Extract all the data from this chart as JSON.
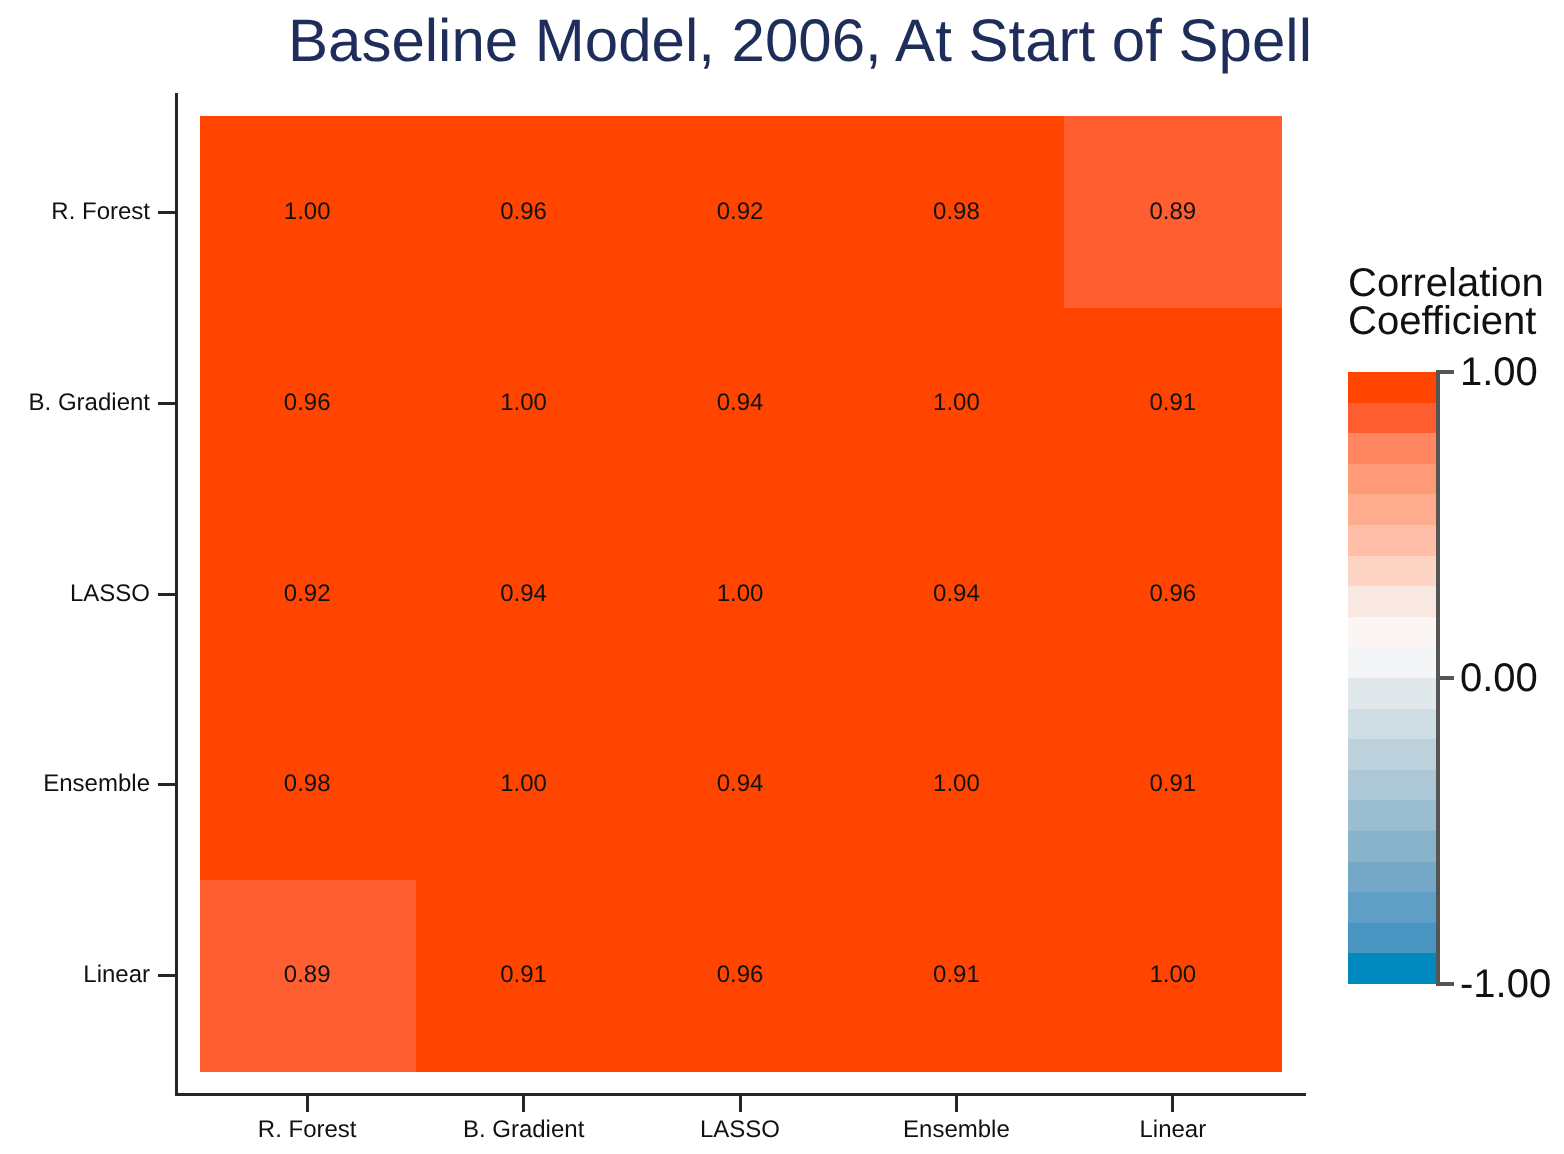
{
  "chart_data": {
    "type": "heatmap",
    "title": "Baseline Model, 2006, At Start of Spell",
    "categories": [
      "R. Forest",
      "B. Gradient",
      "LASSO",
      "Ensemble",
      "Linear"
    ],
    "y_categories": [
      "R. Forest",
      "B. Gradient",
      "LASSO",
      "Ensemble",
      "Linear"
    ],
    "cells": [
      [
        1.0,
        0.96,
        0.92,
        0.98,
        0.89
      ],
      [
        0.96,
        1.0,
        0.94,
        1.0,
        0.91
      ],
      [
        0.92,
        0.94,
        1.0,
        0.94,
        0.96
      ],
      [
        0.98,
        1.0,
        0.94,
        1.0,
        0.91
      ],
      [
        0.89,
        0.91,
        0.96,
        0.91,
        1.0
      ]
    ],
    "cell_labels": [
      [
        "1.00",
        "0.96",
        "0.92",
        "0.98",
        "0.89"
      ],
      [
        "0.96",
        "1.00",
        "0.94",
        "1.00",
        "0.91"
      ],
      [
        "0.92",
        "0.94",
        "1.00",
        "0.94",
        "0.96"
      ],
      [
        "0.98",
        "1.00",
        "0.94",
        "1.00",
        "0.91"
      ],
      [
        "0.89",
        "0.91",
        "0.96",
        "0.91",
        "1.00"
      ]
    ],
    "clabel": "Correlation Coefficient",
    "clim": [
      -1,
      1
    ],
    "cticks": [
      {
        "value": -1,
        "label": "-1.00"
      },
      {
        "value": 0,
        "label": "0.00"
      },
      {
        "value": 1,
        "label": "1.00"
      }
    ]
  }
}
